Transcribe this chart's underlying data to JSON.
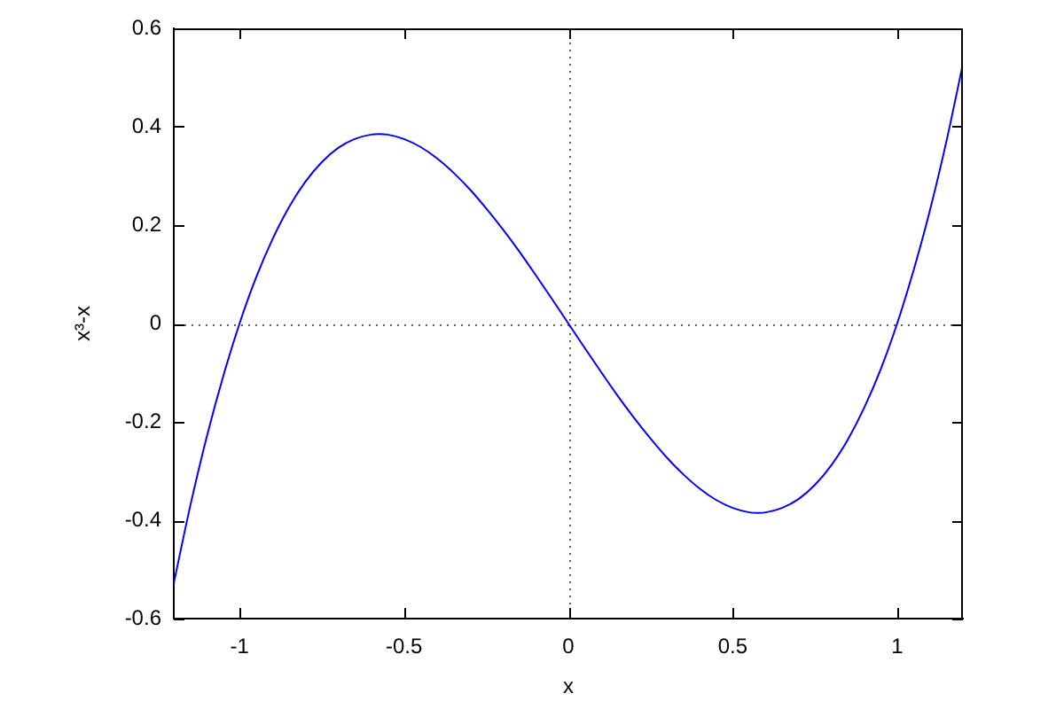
{
  "chart_data": {
    "type": "line",
    "xlabel": "x",
    "ylabel": "x³-x",
    "x": [
      -1.2,
      -1.15,
      -1.1,
      -1.05,
      -1.0,
      -0.95,
      -0.9,
      -0.85,
      -0.8,
      -0.75,
      -0.7,
      -0.65,
      -0.6,
      -0.577,
      -0.55,
      -0.5,
      -0.45,
      -0.4,
      -0.35,
      -0.3,
      -0.25,
      -0.2,
      -0.15,
      -0.1,
      -0.05,
      0,
      0.05,
      0.1,
      0.15,
      0.2,
      0.25,
      0.3,
      0.35,
      0.4,
      0.45,
      0.5,
      0.55,
      0.577,
      0.6,
      0.65,
      0.7,
      0.75,
      0.8,
      0.85,
      0.9,
      0.95,
      1.0,
      1.05,
      1.1,
      1.15,
      1.2
    ],
    "series": [
      {
        "color": "#0000ff",
        "values": [
          -0.528,
          -0.371,
          -0.231,
          -0.108,
          0,
          0.093,
          0.171,
          0.236,
          0.288,
          0.328,
          0.357,
          0.375,
          0.384,
          0.385,
          0.384,
          0.375,
          0.359,
          0.336,
          0.307,
          0.273,
          0.234,
          0.192,
          0.147,
          0.099,
          0.05,
          0,
          -0.05,
          -0.099,
          -0.147,
          -0.192,
          -0.234,
          -0.273,
          -0.307,
          -0.336,
          -0.359,
          -0.375,
          -0.384,
          -0.385,
          -0.384,
          -0.375,
          -0.357,
          -0.328,
          -0.288,
          -0.236,
          -0.171,
          -0.093,
          0,
          0.108,
          0.231,
          0.371,
          0.528
        ]
      }
    ],
    "xlim": [
      -1.2,
      1.2
    ],
    "xticks": [
      -1,
      -0.5,
      0,
      0.5,
      1
    ],
    "ylim": [
      -0.6,
      0.6
    ],
    "yticks": [
      -0.6,
      -0.4,
      -0.2,
      0,
      0.2,
      0.4,
      0.6
    ],
    "ref_lines": [
      {
        "axis": "x",
        "value": 0,
        "color": "#606060",
        "line_style": "dotted"
      },
      {
        "axis": "y",
        "value": 0,
        "color": "#606060",
        "line_style": "dotted"
      }
    ],
    "grid": false,
    "legend": false,
    "marker": "none",
    "line_style": "solid"
  }
}
